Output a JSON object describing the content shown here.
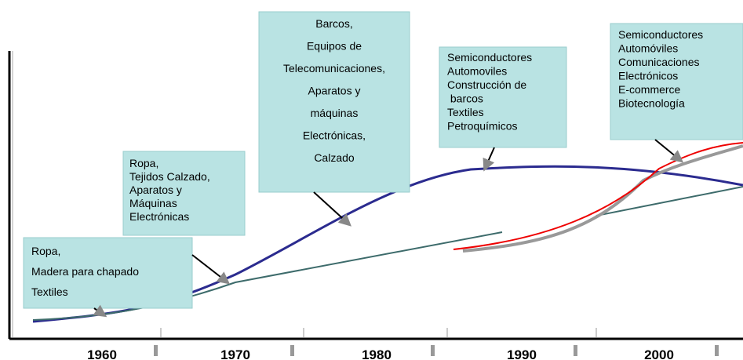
{
  "boxes": [
    {
      "lines": [
        "Ropa,",
        "Madera para chapado",
        "Textiles"
      ]
    },
    {
      "lines": [
        "Ropa,",
        "Tejidos Calzado,",
        "Aparatos y",
        "Máquinas",
        "Electrónicas"
      ]
    },
    {
      "lines": [
        "Barcos,",
        "Equipos de",
        "Telecomunicaciones,",
        "Aparatos y",
        "máquinas",
        "Electrónicas,",
        "Calzado"
      ]
    },
    {
      "lines": [
        "Semiconductores",
        "Automoviles",
        "Construcción de",
        " barcos",
        "Textiles",
        "Petroquímicos"
      ]
    },
    {
      "lines": [
        "Semiconductores",
        "Automóviles",
        "Comunicaciones",
        "Electrónicos",
        "E-commerce",
        "Biotecnología"
      ]
    }
  ],
  "decades": [
    "1960",
    "1970",
    "1980",
    "1990",
    "2000"
  ]
}
